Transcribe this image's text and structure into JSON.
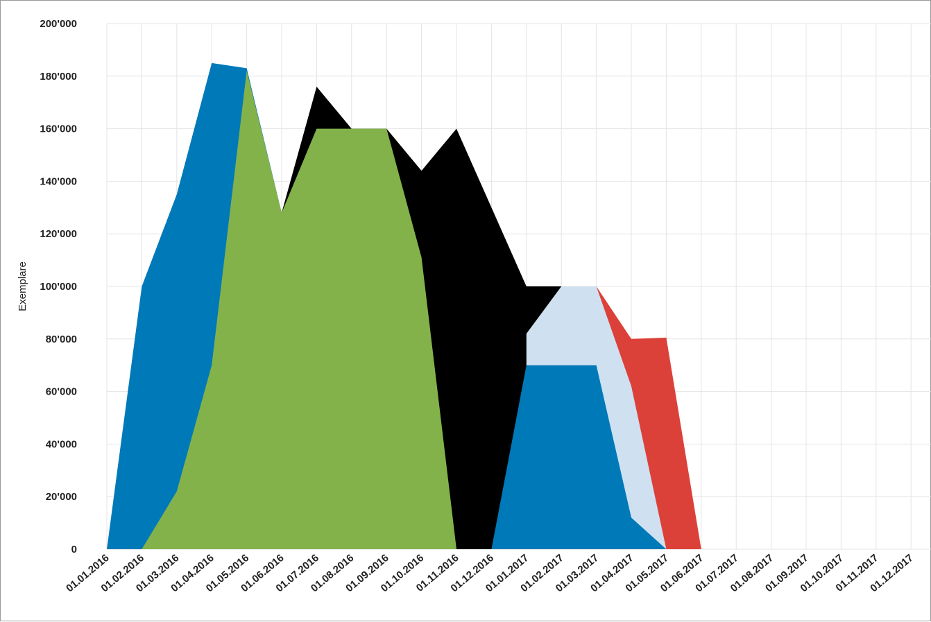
{
  "chart_data": {
    "type": "area",
    "ylabel": "Exemplare",
    "xlabel": "",
    "title": "",
    "ylim": [
      0,
      200000
    ],
    "y_ticks": [
      0,
      20000,
      40000,
      60000,
      80000,
      100000,
      120000,
      140000,
      160000,
      180000,
      200000
    ],
    "y_tick_labels": [
      "0",
      "20'000",
      "40'000",
      "60'000",
      "80'000",
      "100'000",
      "120'000",
      "140'000",
      "160'000",
      "180'000",
      "200'000"
    ],
    "x_tick_labels": [
      "01.01.2016",
      "01.02.2016",
      "01.03.2016",
      "01.04.2016",
      "01.05.2016",
      "01.06.2016",
      "01.07.2016",
      "01.08.2016",
      "01.09.2016",
      "01.10.2016",
      "01.11.2016",
      "01.12.2016",
      "01.01.2017",
      "01.02.2017",
      "01.03.2017",
      "01.04.2017",
      "01.05.2017",
      "01.06.2017",
      "01.07.2017",
      "01.08.2017",
      "01.09.2017",
      "01.10.2017",
      "01.11.2017",
      "01.12.2017"
    ],
    "grid": true,
    "legend": "none",
    "series": [
      {
        "color": "#0079b9",
        "points": [
          [
            "01.01.2016",
            0
          ],
          [
            "01.02.2016",
            100000
          ],
          [
            "01.03.2016",
            135000
          ],
          [
            "01.04.2016",
            185000
          ],
          [
            "01.05.2016",
            183000
          ],
          [
            "01.06.2016",
            128000
          ],
          [
            "01.07.2016",
            0
          ]
        ]
      },
      {
        "color": "#000000",
        "points": [
          [
            "01.06.2016",
            128000
          ],
          [
            "01.07.2016",
            176000
          ],
          [
            "01.08.2016",
            160000
          ],
          [
            "01.09.2016",
            160000
          ],
          [
            "01.10.2016",
            144000
          ],
          [
            "01.11.2016",
            160000
          ],
          [
            "01.12.2016",
            130000
          ],
          [
            "01.01.2017",
            100000
          ],
          [
            "01.02.2017",
            100000
          ],
          [
            "01.03.2017",
            0
          ]
        ]
      },
      {
        "color": "#84b24a",
        "points": [
          [
            "01.02.2016",
            0
          ],
          [
            "01.03.2016",
            22000
          ],
          [
            "01.04.2016",
            70000
          ],
          [
            "01.05.2016",
            182000
          ],
          [
            "01.06.2016",
            128000
          ],
          [
            "01.07.2016",
            160000
          ],
          [
            "01.08.2016",
            160000
          ],
          [
            "01.09.2016",
            160000
          ],
          [
            "01.10.2016",
            111000
          ],
          [
            "01.11.2016",
            0
          ]
        ]
      },
      {
        "color": "#dc4139",
        "points": [
          [
            "01.03.2017",
            100000
          ],
          [
            "01.04.2017",
            80000
          ],
          [
            "01.05.2017",
            80500
          ],
          [
            "01.06.2017",
            0
          ]
        ]
      },
      {
        "color": "#cfe1f0",
        "points": [
          [
            "01.01.2017",
            82000
          ],
          [
            "01.02.2017",
            100000
          ],
          [
            "01.03.2017",
            100000
          ],
          [
            "01.04.2017",
            62000
          ],
          [
            "01.05.2017",
            0
          ]
        ]
      },
      {
        "color": "#0079b9",
        "points": [
          [
            "01.12.2016",
            0
          ],
          [
            "01.01.2017",
            70000
          ],
          [
            "01.02.2017",
            70000
          ],
          [
            "01.03.2017",
            70000
          ],
          [
            "01.04.2017",
            12000
          ],
          [
            "01.05.2017",
            0
          ]
        ]
      }
    ]
  }
}
